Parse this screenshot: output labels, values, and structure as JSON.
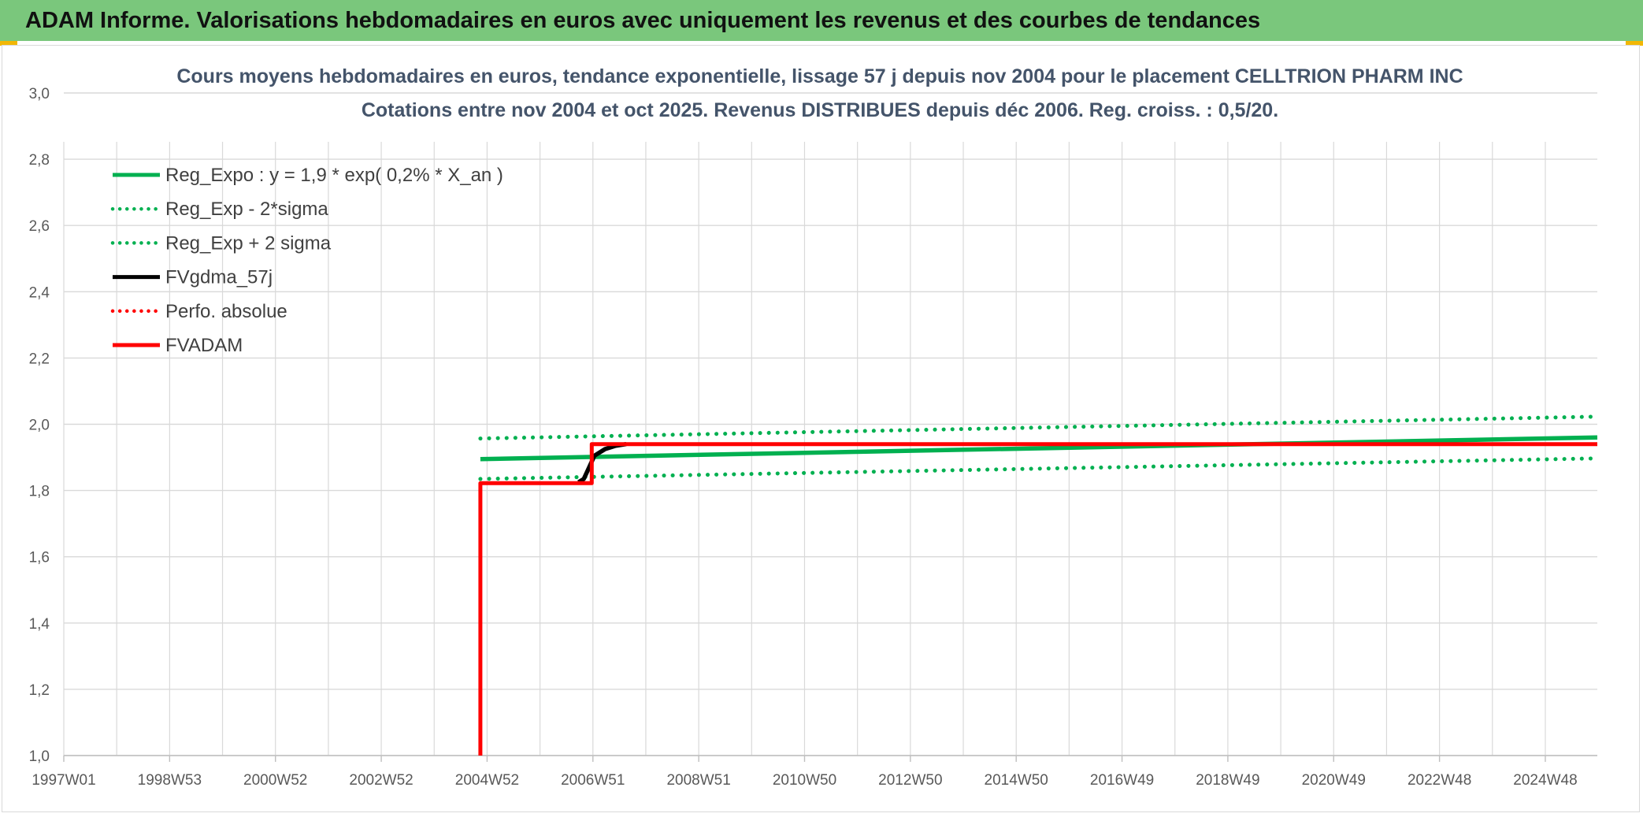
{
  "header": {
    "title": "ADAM Informe. Valorisations hebdomadaires en euros avec uniquement les revenus et des courbes de tendances"
  },
  "colors": {
    "banner": "#7ac77c",
    "green": "#00b050",
    "red": "#ff0000",
    "black": "#000000",
    "grid": "#d9d9d9",
    "title": "#44546a"
  },
  "chart_data": {
    "type": "line",
    "title_line1": "Cours moyens hebdomadaires en euros, tendance exponentielle, lissage 57 j depuis nov 2004 pour le placement CELLTRION PHARM INC",
    "title_line2": "Cotations entre nov 2004 et oct 2025. Revenus DISTRIBUES depuis déc 2006. Reg. croiss. : 0,5/20.",
    "xlabel": "",
    "ylabel": "",
    "xlim": [
      1997.0,
      2025.9
    ],
    "ylim": [
      1.0,
      3.0
    ],
    "y_ticks": [
      "1,0",
      "1,2",
      "1,4",
      "1,6",
      "1,8",
      "2,0",
      "2,2",
      "2,4",
      "2,6",
      "2,8",
      "3,0"
    ],
    "x_ticks": [
      "1997W01",
      "1998W53",
      "2000W52",
      "2002W52",
      "2004W52",
      "2006W51",
      "2008W51",
      "2010W50",
      "2012W50",
      "2014W50",
      "2016W49",
      "2018W49",
      "2020W49",
      "2022W48",
      "2024W48"
    ],
    "grid": true,
    "legend_position": "top-left",
    "series": [
      {
        "name": "Reg_Expo : y = 1,9 * exp( 0,2% *  X_an )",
        "color": "#00b050",
        "style": "solid",
        "x": [
          2004.85,
          2025.9
        ],
        "y": [
          1.895,
          1.96
        ]
      },
      {
        "name": "Reg_Exp - 2*sigma",
        "color": "#00b050",
        "style": "dotted",
        "x": [
          2004.85,
          2025.9
        ],
        "y": [
          1.835,
          1.897
        ]
      },
      {
        "name": "Reg_Exp + 2 sigma",
        "color": "#00b050",
        "style": "dotted",
        "x": [
          2004.85,
          2025.9
        ],
        "y": [
          1.957,
          2.023
        ]
      },
      {
        "name": "FVgdma_57j",
        "color": "#000000",
        "style": "solid",
        "x": [
          2006.7,
          2006.8,
          2006.9,
          2007.0,
          2007.2,
          2007.4,
          2007.6
        ],
        "y": [
          1.825,
          1.835,
          1.87,
          1.905,
          1.925,
          1.935,
          1.94
        ]
      },
      {
        "name": "Perfo. absolue",
        "color": "#ff0000",
        "style": "dotted",
        "x": [],
        "y": []
      },
      {
        "name": "FVADAM",
        "color": "#ff0000",
        "style": "solid",
        "x": [
          2004.85,
          2004.85,
          2006.95,
          2006.95,
          2025.9
        ],
        "y": [
          1.0,
          1.822,
          1.822,
          1.94,
          1.94
        ]
      }
    ]
  }
}
